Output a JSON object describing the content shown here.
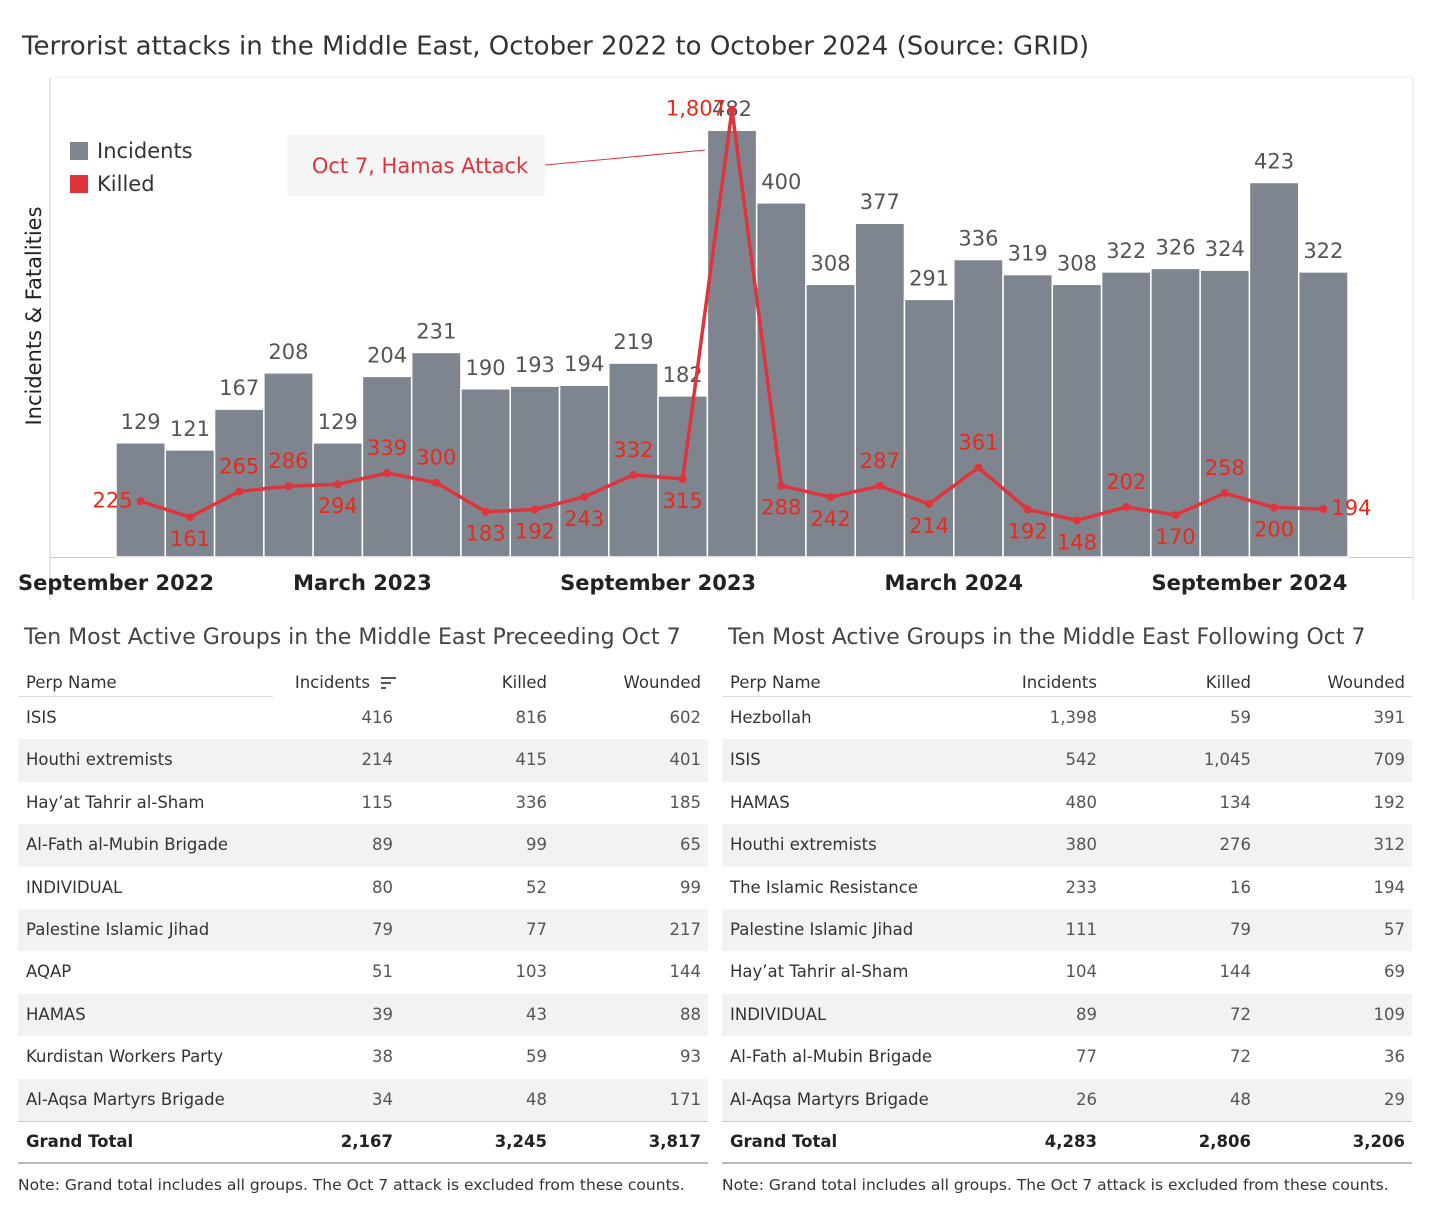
{
  "chart_data": {
    "type": "bar",
    "title": "Terrorist attacks in the Middle East, October 2022 to October 2024 (Source: GRID)",
    "ylabel": "Incidents & Fatalities",
    "annotation": "Oct 7, Hamas Attack",
    "categories": [
      "September 2022",
      null,
      null,
      null,
      null,
      "March 2023",
      null,
      null,
      null,
      null,
      null,
      "September 2023",
      null,
      null,
      null,
      null,
      null,
      "March 2024",
      null,
      null,
      null,
      null,
      null,
      "September 2024",
      null
    ],
    "series": [
      {
        "name": "Incidents",
        "color": "#7f858f",
        "values": [
          129,
          121,
          167,
          208,
          129,
          204,
          231,
          190,
          193,
          194,
          219,
          182,
          482,
          400,
          308,
          377,
          291,
          336,
          319,
          308,
          322,
          326,
          324,
          423,
          322
        ]
      },
      {
        "name": "Killed",
        "color": "#e0343c",
        "type": "line",
        "axis": "y2",
        "values": [
          225,
          161,
          265,
          286,
          294,
          339,
          300,
          183,
          192,
          243,
          332,
          315,
          1807,
          288,
          242,
          287,
          214,
          361,
          192,
          148,
          202,
          170,
          258,
          200,
          194
        ],
        "value_labels": [
          "225",
          "161",
          "265",
          "286",
          "294",
          "339",
          "300",
          "183",
          "192",
          "243",
          "332",
          "315",
          "1,807",
          "288",
          "242",
          "287",
          "214",
          "361",
          "192",
          "148",
          "202",
          "170",
          "258",
          "200",
          "194"
        ]
      }
    ],
    "ylim": [
      0,
      541
    ],
    "y2lim": [
      0,
      1935
    ],
    "legend": "top-left"
  },
  "tables": [
    {
      "title": "Ten Most Active Groups in the Middle East Preceeding Oct 7",
      "columns": [
        "Perp Name",
        "Incidents",
        "Killed",
        "Wounded"
      ],
      "rows": [
        [
          "ISIS",
          "416",
          "816",
          "602"
        ],
        [
          "Houthi extremists",
          "214",
          "415",
          "401"
        ],
        [
          "Hay’at Tahrir al-Sham",
          "115",
          "336",
          "185"
        ],
        [
          "Al-Fath al-Mubin Brigade",
          "89",
          "99",
          "65"
        ],
        [
          "INDIVIDUAL",
          "80",
          "52",
          "99"
        ],
        [
          "Palestine Islamic Jihad",
          "79",
          "77",
          "217"
        ],
        [
          "AQAP",
          "51",
          "103",
          "144"
        ],
        [
          "HAMAS",
          "39",
          "43",
          "88"
        ],
        [
          "Kurdistan Workers Party",
          "38",
          "59",
          "93"
        ],
        [
          "Al-Aqsa Martyrs Brigade",
          "34",
          "48",
          "171"
        ]
      ],
      "total": [
        "Grand Total",
        "2,167",
        "3,245",
        "3,817"
      ],
      "note": "Note: Grand total includes all groups. The Oct 7 attack is excluded from these counts."
    },
    {
      "title": "Ten Most Active Groups in the Middle East Following Oct 7",
      "columns": [
        "Perp Name",
        "Incidents",
        "Killed",
        "Wounded"
      ],
      "rows": [
        [
          "Hezbollah",
          "1,398",
          "59",
          "391"
        ],
        [
          "ISIS",
          "542",
          "1,045",
          "709"
        ],
        [
          "HAMAS",
          "480",
          "134",
          "192"
        ],
        [
          "Houthi extremists",
          "380",
          "276",
          "312"
        ],
        [
          "The Islamic Resistance",
          "233",
          "16",
          "194"
        ],
        [
          "Palestine Islamic Jihad",
          "111",
          "79",
          "57"
        ],
        [
          "Hay’at Tahrir al-Sham",
          "104",
          "144",
          "69"
        ],
        [
          "INDIVIDUAL",
          "89",
          "72",
          "109"
        ],
        [
          "Al-Fath al-Mubin Brigade",
          "77",
          "72",
          "36"
        ],
        [
          "Al-Aqsa Martyrs Brigade",
          "26",
          "48",
          "29"
        ]
      ],
      "total": [
        "Grand Total",
        "4,283",
        "2,806",
        "3,206"
      ],
      "note": "Note: Grand total includes all groups. The Oct 7 attack is excluded from these counts."
    }
  ]
}
